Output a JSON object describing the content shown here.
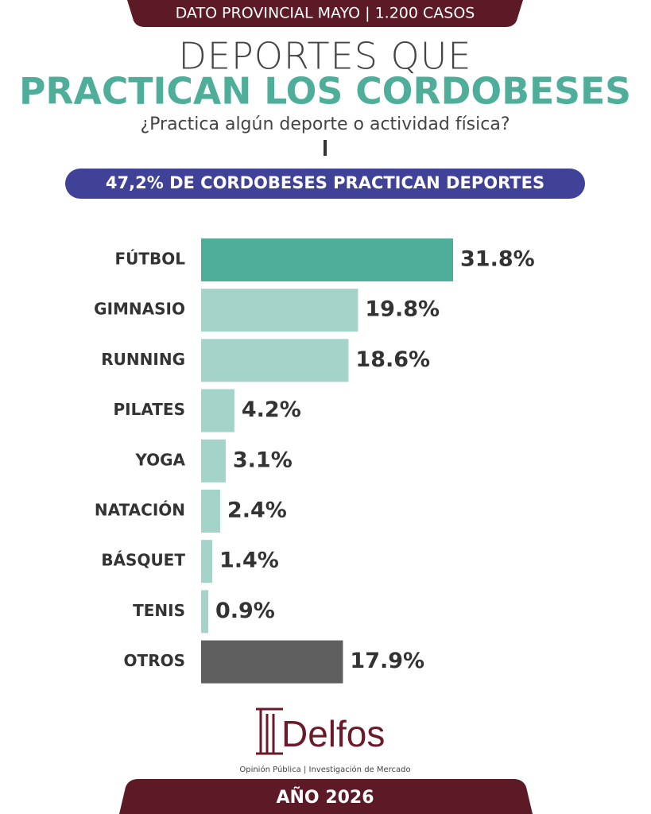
{
  "header": {
    "badge": "DATO PROVINCIAL MAYO | 1.200 CASOS",
    "title_line1": "DEPORTES QUE",
    "title_line2": "PRACTICAN LOS CORDOBESES",
    "question": "¿Practica algún deporte o actividad física?",
    "banner": "47,2% DE CORDOBESES PRACTICAN DEPORTES"
  },
  "chart_data": {
    "type": "hbar",
    "categories": [
      "FÚTBOL",
      "GIMNASIO",
      "RUNNING",
      "PILATES",
      "YOGA",
      "NATACIÓN",
      "BÁSQUET",
      "TENIS",
      "OTROS"
    ],
    "values": [
      31.8,
      19.8,
      18.6,
      4.2,
      3.1,
      2.4,
      1.4,
      0.9,
      17.9
    ],
    "value_labels": [
      "31.8%",
      "19.8%",
      "18.6%",
      "4.2%",
      "3.1%",
      "2.4%",
      "1.4%",
      "0.9%",
      "17.9%"
    ],
    "colors": [
      "#4fae9a",
      "#a4d3ca",
      "#a4d3ca",
      "#a4d3ca",
      "#a4d3ca",
      "#a4d3ca",
      "#a4d3ca",
      "#a4d3ca",
      "#5f5f5f"
    ]
  },
  "footer": {
    "logo": "Delfos",
    "tagline": "Opinión Pública | Investigación de Mercado",
    "year": "AÑO 2026"
  }
}
